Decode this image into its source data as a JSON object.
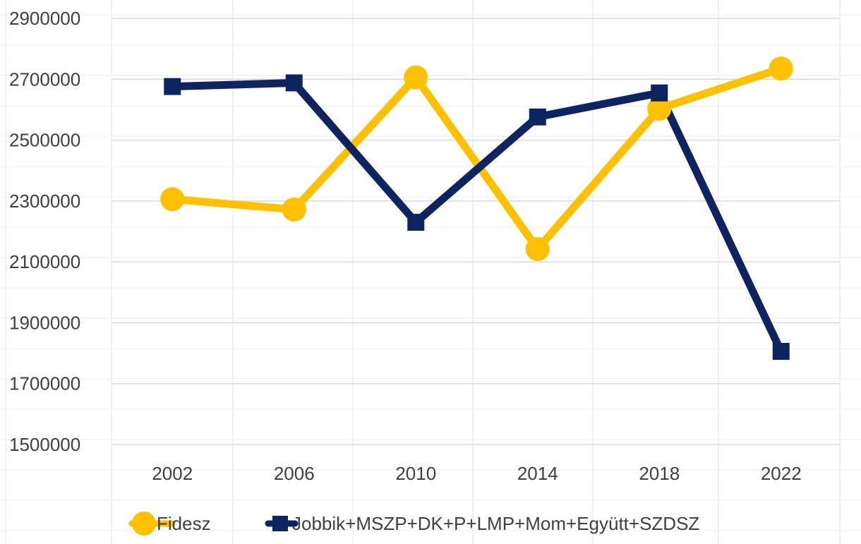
{
  "chart_data": {
    "type": "line",
    "title": "",
    "xlabel": "",
    "ylabel": "",
    "categories": [
      "2002",
      "2006",
      "2010",
      "2014",
      "2018",
      "2022"
    ],
    "ylim": [
      1500000,
      2900000
    ],
    "yticks": [
      "1500000",
      "1700000",
      "1900000",
      "2100000",
      "2300000",
      "2500000",
      "2700000",
      "2900000"
    ],
    "grid": true,
    "legend_position": "bottom",
    "series": [
      {
        "name": "Fidesz",
        "color": "#FFC000",
        "marker": "circle",
        "values": [
          2306000,
          2272000,
          2706000,
          2142000,
          2603000,
          2735000
        ]
      },
      {
        "name": "Jobbik+MSZP+DK+P+LMP+Mom+Együtt+SZDSZ",
        "color": "#0E2461",
        "marker": "square",
        "values": [
          2676000,
          2688000,
          2230000,
          2576000,
          2655000,
          1806000
        ]
      }
    ]
  }
}
